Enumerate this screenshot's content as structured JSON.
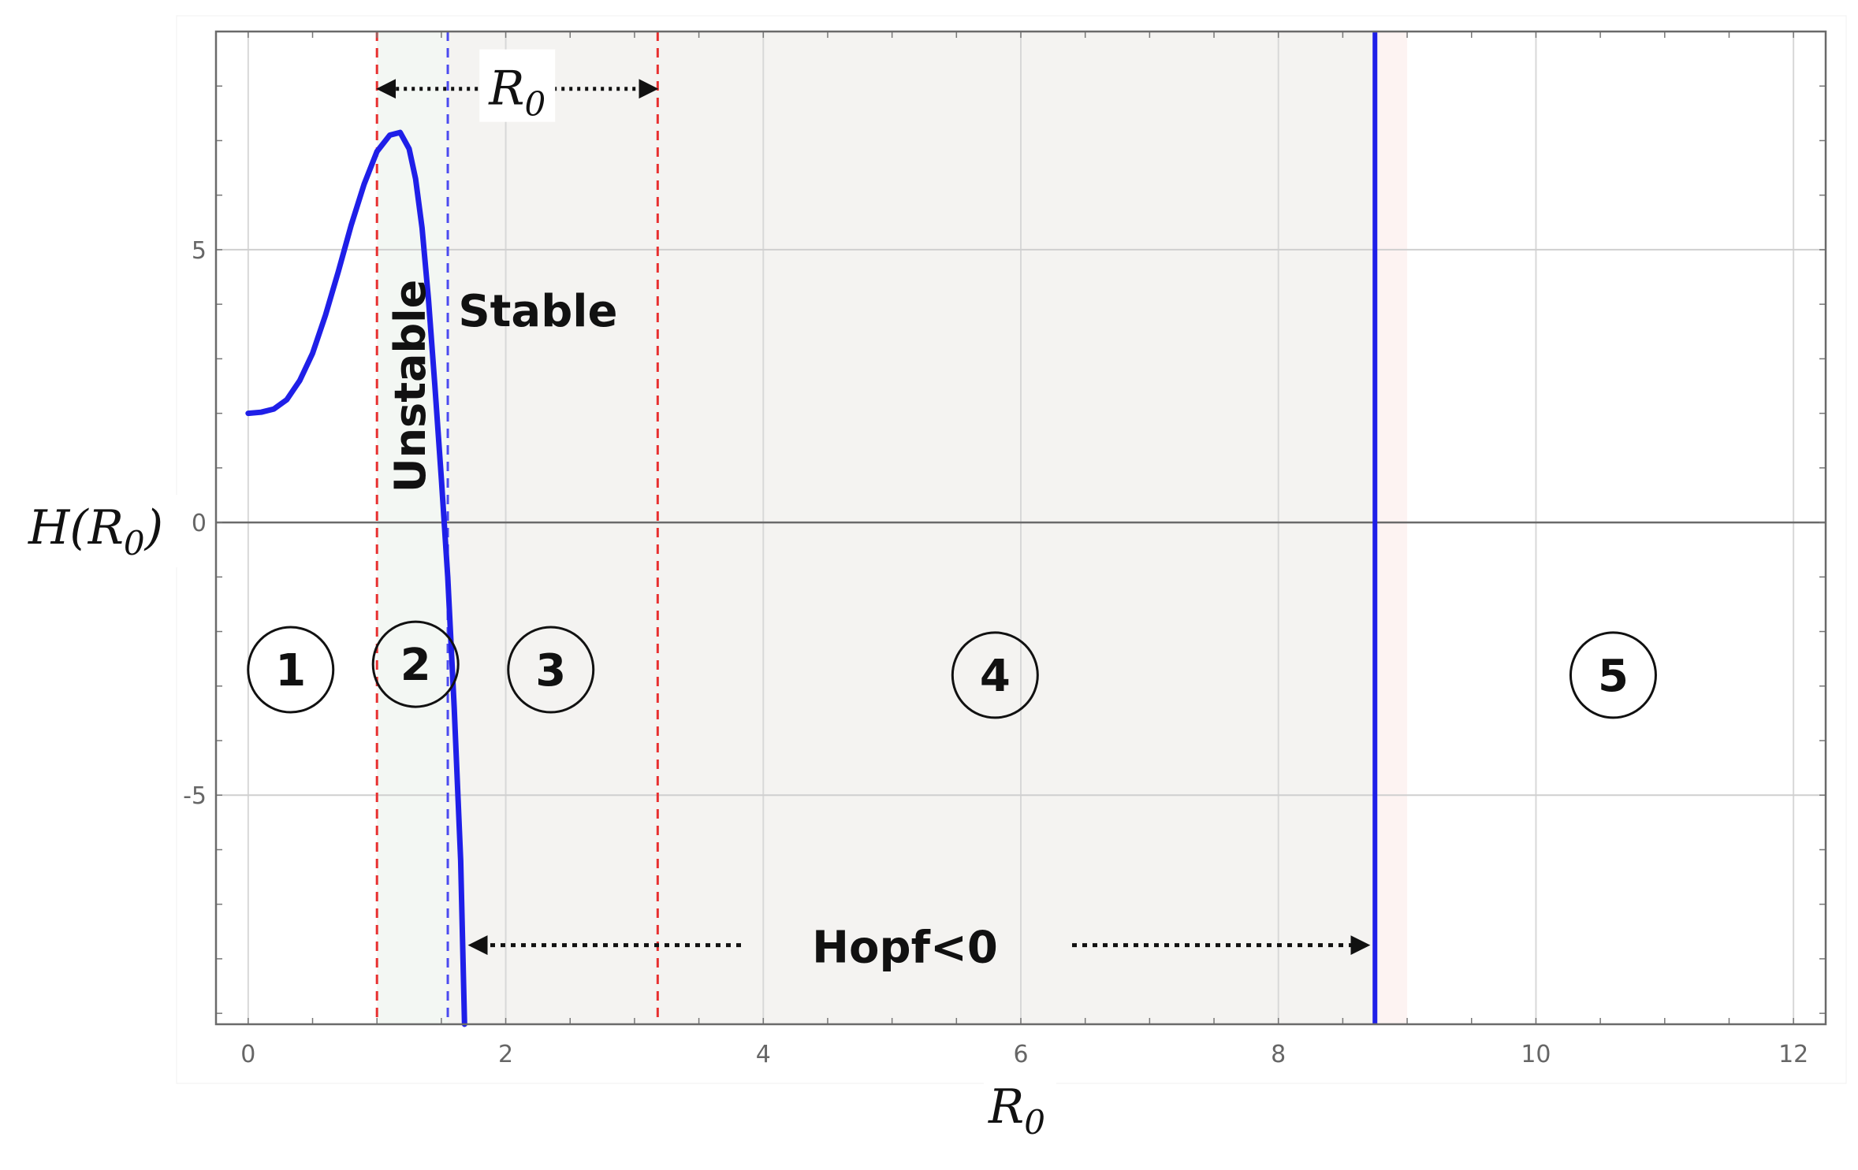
{
  "chart_data": {
    "type": "line",
    "title": "",
    "xlabel": {
      "main": "R",
      "sub": "0"
    },
    "ylabel": {
      "main": "H(R",
      "sub": "0",
      "close": ")"
    },
    "xlim": [
      -0.25,
      12.25
    ],
    "ylim": [
      -9.2,
      9.0
    ],
    "x_ticks": [
      0,
      2,
      4,
      6,
      8,
      10,
      12
    ],
    "y_ticks": [
      -5,
      0,
      5
    ],
    "grid": true,
    "series": [
      {
        "color": "#1f1fe8",
        "points": [
          [
            0.0,
            2.0
          ],
          [
            0.1,
            2.02
          ],
          [
            0.2,
            2.08
          ],
          [
            0.3,
            2.25
          ],
          [
            0.4,
            2.6
          ],
          [
            0.5,
            3.1
          ],
          [
            0.6,
            3.8
          ],
          [
            0.7,
            4.6
          ],
          [
            0.8,
            5.45
          ],
          [
            0.9,
            6.2
          ],
          [
            1.0,
            6.8
          ],
          [
            1.1,
            7.1
          ],
          [
            1.18,
            7.15
          ],
          [
            1.25,
            6.85
          ],
          [
            1.3,
            6.3
          ],
          [
            1.35,
            5.4
          ],
          [
            1.4,
            4.1
          ],
          [
            1.45,
            2.5
          ],
          [
            1.5,
            0.8
          ],
          [
            1.55,
            -1.0
          ],
          [
            1.6,
            -3.4
          ],
          [
            1.65,
            -6.2
          ],
          [
            1.68,
            -9.2
          ]
        ]
      }
    ],
    "vertical_lines": [
      {
        "x": 1.0,
        "style": "dashed",
        "color": "#e83030"
      },
      {
        "x": 1.55,
        "style": "dashed",
        "color": "#4b4bf0"
      },
      {
        "x": 3.18,
        "style": "dashed",
        "color": "#e83030"
      },
      {
        "x": 8.75,
        "style": "solid",
        "color": "#1f1fe8"
      }
    ],
    "shaded_regions": [
      {
        "x0": 1.0,
        "x1": 1.55,
        "color": "#f3f7f3"
      },
      {
        "x0": 1.55,
        "x1": 8.75,
        "color": "#f4f3f1"
      },
      {
        "x0": 8.75,
        "x1": 9.0,
        "color": "#fdf3f2"
      }
    ],
    "annotations": {
      "range_arrow": {
        "label_main": "R",
        "label_sub": "0",
        "x0": 1.0,
        "x1": 3.18,
        "y": 7.95
      },
      "hopf_arrow": {
        "label": "Hopf<0",
        "x0": 1.7,
        "x1": 8.72,
        "y": -7.75
      },
      "unstable": {
        "label": "Unstable",
        "x": 1.25,
        "y": 2.5
      },
      "stable": {
        "label": "Stable",
        "x": 2.25,
        "y": 3.6
      },
      "regions": [
        {
          "label": "1",
          "x": 0.33,
          "y": -2.7
        },
        {
          "label": "2",
          "x": 1.3,
          "y": -2.6
        },
        {
          "label": "3",
          "x": 2.35,
          "y": -2.7
        },
        {
          "label": "4",
          "x": 5.8,
          "y": -2.8
        },
        {
          "label": "5",
          "x": 10.6,
          "y": -2.8
        }
      ]
    }
  }
}
